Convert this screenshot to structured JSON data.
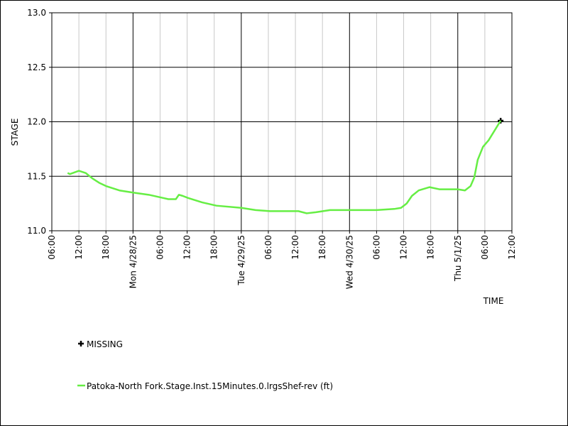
{
  "chart_data": {
    "type": "line",
    "x_label": "TIME",
    "y_label": "STAGE",
    "xlim": [
      "2025-04-27T06:00",
      "2025-05-01T12:00"
    ],
    "xticks": [
      {
        "value": "2025-04-27T06:00",
        "label": "06:00"
      },
      {
        "value": "2025-04-27T12:00",
        "label": "12:00"
      },
      {
        "value": "2025-04-27T18:00",
        "label": "18:00"
      },
      {
        "value": "2025-04-28T00:00",
        "label": "Mon 4/28/25"
      },
      {
        "value": "2025-04-28T06:00",
        "label": "06:00"
      },
      {
        "value": "2025-04-28T12:00",
        "label": "12:00"
      },
      {
        "value": "2025-04-28T18:00",
        "label": "18:00"
      },
      {
        "value": "2025-04-29T00:00",
        "label": "Tue 4/29/25"
      },
      {
        "value": "2025-04-29T06:00",
        "label": "06:00"
      },
      {
        "value": "2025-04-29T12:00",
        "label": "12:00"
      },
      {
        "value": "2025-04-29T18:00",
        "label": "18:00"
      },
      {
        "value": "2025-04-30T00:00",
        "label": "Wed 4/30/25"
      },
      {
        "value": "2025-04-30T06:00",
        "label": "06:00"
      },
      {
        "value": "2025-04-30T12:00",
        "label": "12:00"
      },
      {
        "value": "2025-04-30T18:00",
        "label": "18:00"
      },
      {
        "value": "2025-05-01T00:00",
        "label": "Thu 5/1/25"
      },
      {
        "value": "2025-05-01T06:00",
        "label": "06:00"
      },
      {
        "value": "2025-05-01T12:00",
        "label": "12:00"
      }
    ],
    "ylim": [
      11,
      13
    ],
    "yticks": [
      {
        "value": 11,
        "label": "11.0"
      },
      11.5,
      {
        "value": 12,
        "label": "12.0"
      },
      12.5,
      {
        "value": 13,
        "label": "13.0"
      }
    ],
    "grid": true,
    "series": [
      {
        "name": "MISSING",
        "color": "#000000",
        "marker": "plus",
        "x": [
          "2025-05-01T09:30"
        ],
        "values": [
          12.01
        ]
      },
      {
        "name": "Patoka-North Fork.Stage.Inst.15Minutes.0.lrgsShef-rev (ft)",
        "color": "#66ee44",
        "marker": "line",
        "x": [
          "2025-04-27T09:30",
          "2025-04-27T10:00",
          "2025-04-27T12:00",
          "2025-04-27T13:30",
          "2025-04-27T15:00",
          "2025-04-27T16:30",
          "2025-04-27T18:00",
          "2025-04-27T21:00",
          "2025-04-28T00:00",
          "2025-04-28T03:30",
          "2025-04-28T06:45",
          "2025-04-28T07:50",
          "2025-04-28T09:30",
          "2025-04-28T10:10",
          "2025-04-28T11:00",
          "2025-04-28T12:15",
          "2025-04-28T15:20",
          "2025-04-28T18:30",
          "2025-04-29T00:00",
          "2025-04-29T03:10",
          "2025-04-29T06:20",
          "2025-04-29T07:55",
          "2025-04-29T12:40",
          "2025-04-29T14:30",
          "2025-04-29T16:35",
          "2025-04-29T19:40",
          "2025-04-30T00:00",
          "2025-04-30T06:00",
          "2025-04-30T09:55",
          "2025-04-30T11:25",
          "2025-04-30T12:40",
          "2025-04-30T13:50",
          "2025-04-30T15:20",
          "2025-04-30T17:45",
          "2025-04-30T20:00",
          "2025-05-01T00:00",
          "2025-05-01T01:35",
          "2025-05-01T02:50",
          "2025-05-01T03:40",
          "2025-05-01T04:25",
          "2025-05-01T05:35",
          "2025-05-01T06:50",
          "2025-05-01T09:30"
        ],
        "values": [
          11.53,
          11.52,
          11.55,
          11.53,
          11.48,
          11.44,
          11.41,
          11.37,
          11.35,
          11.33,
          11.3,
          11.29,
          11.29,
          11.33,
          11.32,
          11.3,
          11.26,
          11.23,
          11.21,
          11.19,
          11.18,
          11.18,
          11.18,
          11.16,
          11.17,
          11.19,
          11.19,
          11.19,
          11.2,
          11.21,
          11.25,
          11.32,
          11.37,
          11.4,
          11.38,
          11.38,
          11.37,
          11.41,
          11.49,
          11.65,
          11.77,
          11.83,
          12.01
        ]
      }
    ]
  }
}
